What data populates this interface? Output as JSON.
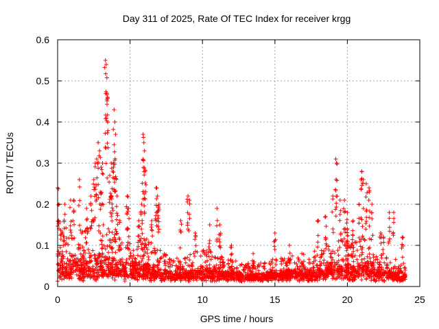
{
  "chart_data": {
    "type": "scatter",
    "title": "Day 311 of 2025, Rate Of TEC Index for receiver krgg",
    "xlabel": "GPS time / hours",
    "ylabel": "ROTI / TECUs",
    "xlim": [
      0,
      25
    ],
    "ylim": [
      0,
      0.6
    ],
    "x_ticks": [
      "0",
      "5",
      "10",
      "15",
      "20",
      "25"
    ],
    "y_ticks": [
      "0",
      "0.1",
      "0.2",
      "0.3",
      "0.4",
      "0.5",
      "0.6"
    ],
    "grid": true,
    "marker": "plus",
    "color": "#ff0000",
    "series": [
      {
        "x_range": [
          0,
          24
        ],
        "density_points": [
          [
            0.0,
            0.03,
            0.12
          ],
          [
            0.5,
            0.03,
            0.14
          ],
          [
            1.0,
            0.03,
            0.13
          ],
          [
            1.5,
            0.03,
            0.12
          ],
          [
            2.0,
            0.03,
            0.14
          ],
          [
            2.5,
            0.03,
            0.16
          ],
          [
            3.0,
            0.03,
            0.16
          ],
          [
            3.5,
            0.03,
            0.14
          ],
          [
            4.0,
            0.03,
            0.13
          ],
          [
            4.5,
            0.03,
            0.1
          ],
          [
            5.0,
            0.03,
            0.1
          ],
          [
            5.5,
            0.03,
            0.1
          ],
          [
            6.0,
            0.03,
            0.11
          ],
          [
            6.5,
            0.03,
            0.09
          ],
          [
            7.0,
            0.03,
            0.08
          ],
          [
            7.5,
            0.02,
            0.07
          ],
          [
            8.0,
            0.02,
            0.06
          ],
          [
            8.5,
            0.02,
            0.06
          ],
          [
            9.0,
            0.02,
            0.07
          ],
          [
            9.5,
            0.02,
            0.07
          ],
          [
            10.0,
            0.02,
            0.08
          ],
          [
            10.5,
            0.02,
            0.08
          ],
          [
            11.0,
            0.02,
            0.08
          ],
          [
            11.5,
            0.02,
            0.06
          ],
          [
            12.0,
            0.02,
            0.06
          ],
          [
            12.5,
            0.02,
            0.05
          ],
          [
            13.0,
            0.02,
            0.05
          ],
          [
            13.5,
            0.02,
            0.05
          ],
          [
            14.0,
            0.02,
            0.05
          ],
          [
            14.5,
            0.02,
            0.05
          ],
          [
            15.0,
            0.02,
            0.06
          ],
          [
            15.5,
            0.02,
            0.06
          ],
          [
            16.0,
            0.02,
            0.07
          ],
          [
            16.5,
            0.02,
            0.07
          ],
          [
            17.0,
            0.02,
            0.07
          ],
          [
            17.5,
            0.02,
            0.07
          ],
          [
            18.0,
            0.03,
            0.08
          ],
          [
            18.5,
            0.03,
            0.09
          ],
          [
            19.0,
            0.03,
            0.1
          ],
          [
            19.5,
            0.03,
            0.1
          ],
          [
            20.0,
            0.03,
            0.1
          ],
          [
            20.5,
            0.03,
            0.1
          ],
          [
            21.0,
            0.03,
            0.11
          ],
          [
            21.5,
            0.03,
            0.1
          ],
          [
            22.0,
            0.03,
            0.08
          ],
          [
            22.5,
            0.02,
            0.07
          ],
          [
            23.0,
            0.02,
            0.06
          ],
          [
            23.5,
            0.02,
            0.06
          ],
          [
            24.0,
            0.02,
            0.05
          ]
        ],
        "outliers": [
          [
            0.0,
            0.24
          ],
          [
            0.1,
            0.2
          ],
          [
            0.5,
            0.2
          ],
          [
            0.9,
            0.21
          ],
          [
            1.1,
            0.21
          ],
          [
            1.5,
            0.26
          ],
          [
            2.0,
            0.19
          ],
          [
            2.3,
            0.22
          ],
          [
            2.5,
            0.26
          ],
          [
            2.6,
            0.3
          ],
          [
            2.7,
            0.31
          ],
          [
            2.8,
            0.35
          ],
          [
            2.9,
            0.33
          ],
          [
            3.0,
            0.29
          ],
          [
            3.1,
            0.3
          ],
          [
            3.3,
            0.55
          ],
          [
            3.35,
            0.54
          ],
          [
            3.4,
            0.47
          ],
          [
            3.45,
            0.46
          ],
          [
            3.6,
            0.27
          ],
          [
            3.7,
            0.3
          ],
          [
            3.8,
            0.28
          ],
          [
            3.9,
            0.43
          ],
          [
            3.95,
            0.4
          ],
          [
            4.0,
            0.37
          ],
          [
            4.1,
            0.22
          ],
          [
            4.3,
            0.16
          ],
          [
            4.8,
            0.22
          ],
          [
            4.9,
            0.19
          ],
          [
            5.6,
            0.16
          ],
          [
            5.8,
            0.2
          ],
          [
            5.9,
            0.37
          ],
          [
            5.95,
            0.35
          ],
          [
            6.0,
            0.33
          ],
          [
            6.05,
            0.28
          ],
          [
            6.5,
            0.16
          ],
          [
            6.8,
            0.24
          ],
          [
            6.9,
            0.22
          ],
          [
            7.0,
            0.2
          ],
          [
            8.5,
            0.16
          ],
          [
            9.0,
            0.22
          ],
          [
            9.1,
            0.21
          ],
          [
            9.5,
            0.13
          ],
          [
            10.5,
            0.15
          ],
          [
            11.0,
            0.19
          ],
          [
            11.2,
            0.15
          ],
          [
            12.0,
            0.1
          ],
          [
            13.5,
            0.08
          ],
          [
            15.0,
            0.13
          ],
          [
            16.0,
            0.1
          ],
          [
            18.0,
            0.16
          ],
          [
            18.5,
            0.17
          ],
          [
            19.0,
            0.22
          ],
          [
            19.2,
            0.31
          ],
          [
            19.25,
            0.3
          ],
          [
            19.5,
            0.21
          ],
          [
            19.8,
            0.21
          ],
          [
            20.0,
            0.18
          ],
          [
            20.4,
            0.16
          ],
          [
            20.8,
            0.2
          ],
          [
            21.0,
            0.28
          ],
          [
            21.1,
            0.26
          ],
          [
            21.3,
            0.25
          ],
          [
            21.5,
            0.24
          ],
          [
            21.7,
            0.2
          ],
          [
            22.3,
            0.13
          ],
          [
            22.5,
            0.12
          ],
          [
            22.9,
            0.18
          ],
          [
            23.2,
            0.18
          ],
          [
            23.8,
            0.12
          ]
        ]
      }
    ]
  }
}
